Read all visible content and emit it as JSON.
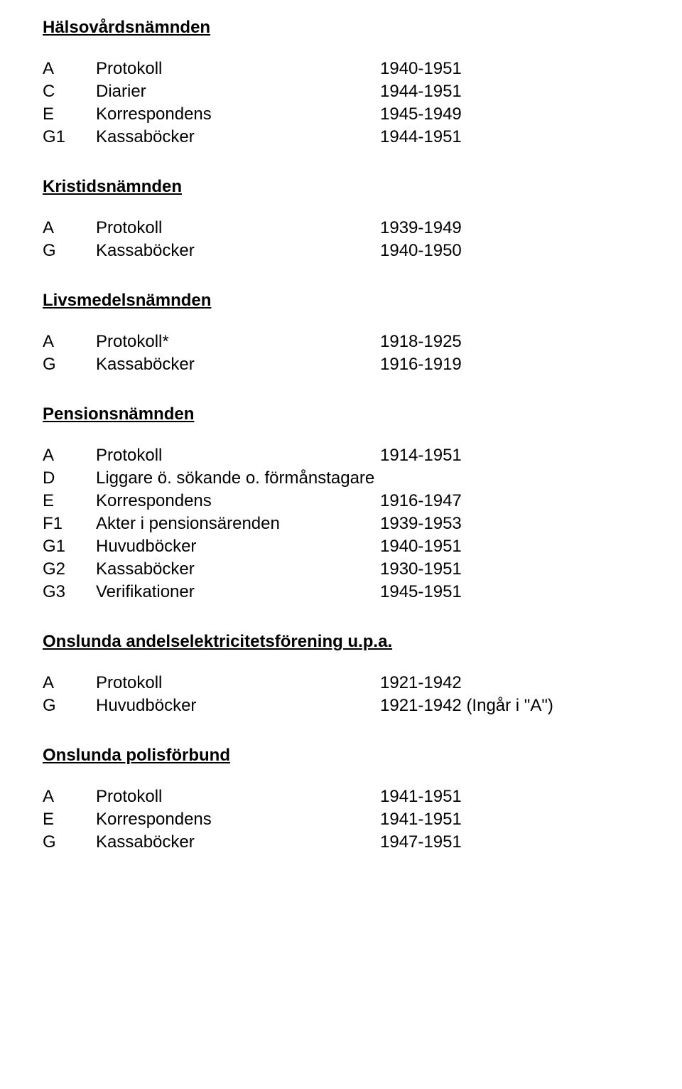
{
  "sections": [
    {
      "title": "Hälsovårdsnämnden",
      "rows": [
        {
          "code": "A",
          "label": "Protokoll",
          "years": "1940-1951"
        },
        {
          "code": "C",
          "label": "Diarier",
          "years": "1944-1951"
        },
        {
          "code": "E",
          "label": "Korrespondens",
          "years": "1945-1949"
        },
        {
          "code": "G1",
          "label": "Kassaböcker",
          "years": "1944-1951"
        }
      ]
    },
    {
      "title": "Kristidsnämnden",
      "rows": [
        {
          "code": "A",
          "label": "Protokoll",
          "years": "1939-1949"
        },
        {
          "code": "G",
          "label": "Kassaböcker",
          "years": "1940-1950"
        }
      ]
    },
    {
      "title": "Livsmedelsnämnden",
      "rows": [
        {
          "code": "A",
          "label": "Protokoll*",
          "years": "1918-1925"
        },
        {
          "code": "G",
          "label": "Kassaböcker",
          "years": "1916-1919"
        }
      ]
    },
    {
      "title": "Pensionsnämnden",
      "rows": [
        {
          "code": "A",
          "label": "Protokoll",
          "years": "1914-1951"
        },
        {
          "code": "D",
          "label": "Liggare ö. sökande o. förmånstagare",
          "years": ""
        },
        {
          "code": "E",
          "label": "Korrespondens",
          "years": "1916-1947"
        },
        {
          "code": "F1",
          "label": "Akter i pensionsärenden",
          "years": "1939-1953"
        },
        {
          "code": "G1",
          "label": "Huvudböcker",
          "years": "1940-1951"
        },
        {
          "code": "G2",
          "label": "Kassaböcker",
          "years": "1930-1951"
        },
        {
          "code": "G3",
          "label": "Verifikationer",
          "years": "1945-1951"
        }
      ]
    },
    {
      "title": "Onslunda andelselektricitetsförening u.p.a.",
      "rows": [
        {
          "code": "A",
          "label": "Protokoll",
          "years": "1921-1942"
        },
        {
          "code": "G",
          "label": "Huvudböcker",
          "years": "1921-1942 (Ingår i \"A\")"
        }
      ]
    },
    {
      "title": "Onslunda polisförbund",
      "rows": [
        {
          "code": "A",
          "label": "Protokoll",
          "years": "1941-1951"
        },
        {
          "code": "E",
          "label": "Korrespondens",
          "years": "1941-1951"
        },
        {
          "code": "G",
          "label": "Kassaböcker",
          "years": "1947-1951"
        }
      ]
    }
  ]
}
